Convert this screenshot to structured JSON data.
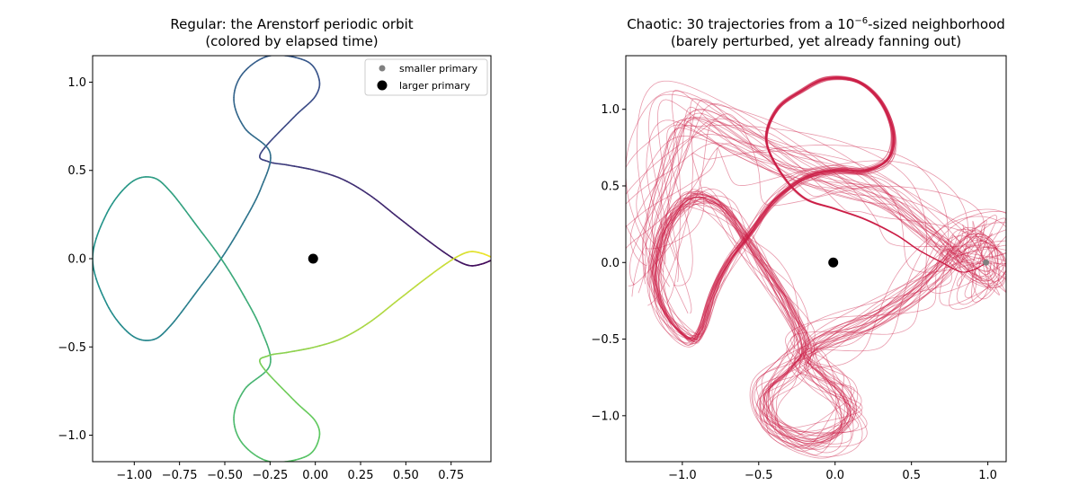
{
  "chart_data": [
    {
      "type": "line",
      "title": "Regular: the Arenstorf periodic orbit",
      "subtitle": "(colored by elapsed time)",
      "xlabel": "",
      "ylabel": "",
      "xlim": [
        -1.23,
        0.97
      ],
      "ylim": [
        -1.15,
        1.15
      ],
      "xticks": [
        -1.0,
        -0.75,
        -0.5,
        -0.25,
        0.0,
        0.25,
        0.5,
        0.75
      ],
      "xtick_labels": [
        "−1.00",
        "−0.75",
        "−0.50",
        "−0.25",
        "0.00",
        "0.25",
        "0.50",
        "0.75"
      ],
      "yticks": [
        -1.0,
        -0.5,
        0.0,
        0.5,
        1.0
      ],
      "ytick_labels": [
        "−1.0",
        "−0.5",
        "0.0",
        "0.5",
        "1.0"
      ],
      "grid": false,
      "colormap": "viridis",
      "orbit_points": [
        [
          0.994,
          0.0
        ],
        [
          0.97,
          -0.01
        ],
        [
          0.92,
          -0.03
        ],
        [
          0.86,
          -0.04
        ],
        [
          0.8,
          -0.02
        ],
        [
          0.72,
          0.03
        ],
        [
          0.6,
          0.12
        ],
        [
          0.45,
          0.24
        ],
        [
          0.3,
          0.36
        ],
        [
          0.15,
          0.45
        ],
        [
          0.0,
          0.5
        ],
        [
          -0.15,
          0.53
        ],
        [
          -0.26,
          0.55
        ],
        [
          -0.3,
          0.6
        ],
        [
          -0.12,
          0.8
        ],
        [
          0.0,
          0.92
        ],
        [
          0.02,
          1.02
        ],
        [
          -0.05,
          1.12
        ],
        [
          -0.25,
          1.15
        ],
        [
          -0.4,
          1.05
        ],
        [
          -0.45,
          0.9
        ],
        [
          -0.39,
          0.74
        ],
        [
          -0.25,
          0.6
        ],
        [
          -0.3,
          0.4
        ],
        [
          -0.4,
          0.2
        ],
        [
          -0.52,
          0.0
        ],
        [
          -0.65,
          -0.18
        ],
        [
          -0.8,
          -0.38
        ],
        [
          -0.9,
          -0.46
        ],
        [
          -1.02,
          -0.43
        ],
        [
          -1.15,
          -0.26
        ],
        [
          -1.23,
          0.0
        ],
        [
          -1.15,
          0.26
        ],
        [
          -1.02,
          0.43
        ],
        [
          -0.9,
          0.46
        ],
        [
          -0.8,
          0.38
        ],
        [
          -0.65,
          0.18
        ],
        [
          -0.52,
          0.0
        ],
        [
          -0.4,
          -0.2
        ],
        [
          -0.3,
          -0.4
        ],
        [
          -0.25,
          -0.6
        ],
        [
          -0.39,
          -0.74
        ],
        [
          -0.45,
          -0.9
        ],
        [
          -0.4,
          -1.05
        ],
        [
          -0.25,
          -1.15
        ],
        [
          -0.05,
          -1.12
        ],
        [
          0.02,
          -1.02
        ],
        [
          0.0,
          -0.92
        ],
        [
          -0.12,
          -0.8
        ],
        [
          -0.3,
          -0.6
        ],
        [
          -0.26,
          -0.55
        ],
        [
          -0.15,
          -0.53
        ],
        [
          0.0,
          -0.5
        ],
        [
          0.15,
          -0.45
        ],
        [
          0.3,
          -0.36
        ],
        [
          0.45,
          -0.24
        ],
        [
          0.6,
          -0.12
        ],
        [
          0.72,
          -0.03
        ],
        [
          0.8,
          0.02
        ],
        [
          0.86,
          0.04
        ],
        [
          0.92,
          0.03
        ],
        [
          0.97,
          0.01
        ],
        [
          0.994,
          0.0
        ]
      ],
      "primaries": [
        {
          "name": "smaller primary",
          "x": 0.988,
          "y": 0.0,
          "color": "#808080",
          "size": "small"
        },
        {
          "name": "larger primary",
          "x": -0.012,
          "y": 0.0,
          "color": "#000000",
          "size": "large"
        }
      ],
      "legend": {
        "placement": "top-right",
        "entries": [
          "smaller primary",
          "larger primary"
        ]
      }
    },
    {
      "type": "line",
      "title_prefix": "Chaotic: 30 trajectories from a 10",
      "title_exponent": "−6",
      "title_suffix": "-sized neighborhood",
      "subtitle": "(barely perturbed, yet already fanning out)",
      "xlabel": "",
      "ylabel": "",
      "xlim": [
        -1.37,
        1.12
      ],
      "ylim": [
        -1.3,
        1.35
      ],
      "xticks": [
        -1.0,
        -0.5,
        0.0,
        0.5,
        1.0
      ],
      "xtick_labels": [
        "−1.0",
        "−0.5",
        "0.0",
        "0.5",
        "1.0"
      ],
      "yticks": [
        -1.0,
        -0.5,
        0.0,
        0.5,
        1.0
      ],
      "ytick_labels": [
        "−1.0",
        "−0.5",
        "0.0",
        "0.5",
        "1.0"
      ],
      "grid": false,
      "trajectory_count": 30,
      "trajectory_color": "#cc1f47",
      "trajectory_points": [
        [
          0.994,
          0.0
        ],
        [
          0.96,
          -0.02
        ],
        [
          0.9,
          -0.05
        ],
        [
          0.82,
          -0.06
        ],
        [
          0.7,
          0.0
        ],
        [
          0.55,
          0.08
        ],
        [
          0.4,
          0.18
        ],
        [
          0.2,
          0.28
        ],
        [
          0.0,
          0.35
        ],
        [
          -0.2,
          0.42
        ],
        [
          -0.35,
          0.58
        ],
        [
          -0.45,
          0.8
        ],
        [
          -0.38,
          1.0
        ],
        [
          -0.22,
          1.12
        ],
        [
          -0.05,
          1.2
        ],
        [
          0.15,
          1.18
        ],
        [
          0.3,
          1.05
        ],
        [
          0.38,
          0.85
        ],
        [
          0.35,
          0.68
        ],
        [
          0.2,
          0.6
        ],
        [
          0.0,
          0.6
        ],
        [
          -0.2,
          0.55
        ],
        [
          -0.4,
          0.4
        ],
        [
          -0.55,
          0.2
        ],
        [
          -0.7,
          0.0
        ],
        [
          -0.8,
          -0.2
        ],
        [
          -0.88,
          -0.45
        ],
        [
          -0.95,
          -0.5
        ],
        [
          -1.1,
          -0.35
        ],
        [
          -1.18,
          -0.1
        ],
        [
          -1.12,
          0.2
        ],
        [
          -1.0,
          0.38
        ],
        [
          -0.88,
          0.43
        ],
        [
          -0.72,
          0.35
        ],
        [
          -0.58,
          0.15
        ],
        [
          -0.45,
          -0.05
        ],
        [
          -0.3,
          -0.3
        ],
        [
          -0.2,
          -0.55
        ],
        [
          -0.3,
          -0.7
        ],
        [
          -0.45,
          -0.85
        ],
        [
          -0.42,
          -1.05
        ],
        [
          -0.2,
          -1.17
        ],
        [
          0.0,
          -1.12
        ],
        [
          0.1,
          -1.0
        ],
        [
          0.05,
          -0.85
        ],
        [
          -0.1,
          -0.72
        ],
        [
          -0.2,
          -0.6
        ],
        [
          -0.05,
          -0.5
        ],
        [
          0.2,
          -0.4
        ],
        [
          0.45,
          -0.25
        ],
        [
          0.65,
          -0.08
        ],
        [
          0.8,
          0.1
        ],
        [
          0.9,
          0.17
        ],
        [
          1.0,
          0.15
        ],
        [
          1.05,
          0.05
        ],
        [
          1.04,
          -0.08
        ],
        [
          0.97,
          -0.1
        ],
        [
          0.88,
          -0.05
        ],
        [
          0.75,
          0.08
        ],
        [
          0.55,
          0.25
        ],
        [
          0.3,
          0.45
        ],
        [
          0.0,
          0.55
        ],
        [
          -0.3,
          0.65
        ],
        [
          -0.6,
          0.8
        ],
        [
          -0.95,
          0.95
        ],
        [
          -1.1,
          0.6
        ],
        [
          -1.2,
          0.2
        ],
        [
          -1.2,
          -0.1
        ]
      ],
      "primaries": [
        {
          "name": "smaller primary",
          "x": 0.988,
          "y": 0.0,
          "color": "#808080",
          "size": "small"
        },
        {
          "name": "larger primary",
          "x": -0.012,
          "y": 0.0,
          "color": "#000000",
          "size": "large"
        }
      ]
    }
  ]
}
